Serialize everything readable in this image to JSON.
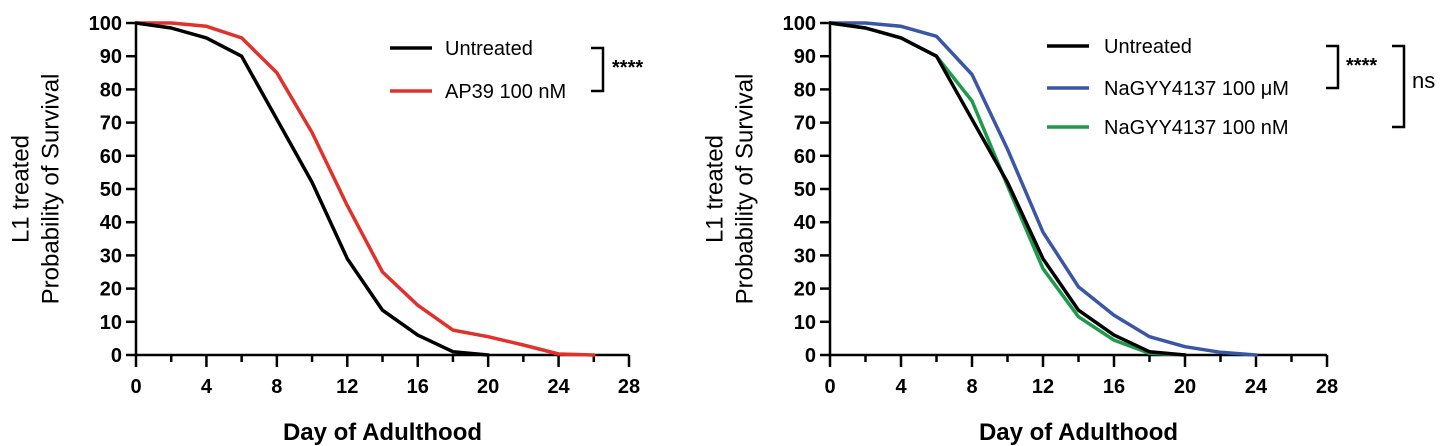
{
  "chart_data": [
    {
      "type": "line",
      "title": "",
      "xlabel": "Day of Adulthood",
      "ylabel": [
        "L1 treated",
        "Probability of Survival"
      ],
      "xlim": [
        0,
        28
      ],
      "ylim": [
        0,
        100
      ],
      "xticks": [
        0,
        4,
        8,
        12,
        16,
        20,
        24,
        28
      ],
      "yticks": [
        0,
        10,
        20,
        30,
        40,
        50,
        60,
        70,
        80,
        90,
        100
      ],
      "legend_placement": "top-right",
      "series": [
        {
          "name": "Untreated",
          "color": "#000000",
          "x": [
            0,
            2,
            4,
            6,
            8,
            10,
            12,
            14,
            16,
            18,
            20
          ],
          "y": [
            100,
            98.5,
            95.5,
            90,
            71,
            52,
            29,
            13.5,
            6,
            1,
            0
          ]
        },
        {
          "name": "AP39 100 nM",
          "color": "#e0312b",
          "x": [
            0,
            2,
            4,
            6,
            8,
            10,
            12,
            14,
            16,
            18,
            20,
            22,
            24,
            26
          ],
          "y": [
            100,
            100,
            99,
            95.5,
            85,
            67,
            45,
            25,
            15,
            7.5,
            5.5,
            3,
            0.3,
            0
          ]
        }
      ],
      "annotations": [
        {
          "text": "****",
          "groups": [
            "Untreated",
            "AP39 100 nM"
          ]
        }
      ]
    },
    {
      "type": "line",
      "title": "",
      "xlabel": "Day of Adulthood",
      "ylabel": [
        "L1 treated",
        "Probability of Survival"
      ],
      "xlim": [
        0,
        28
      ],
      "ylim": [
        0,
        100
      ],
      "xticks": [
        0,
        4,
        8,
        12,
        16,
        20,
        24,
        28
      ],
      "yticks": [
        0,
        10,
        20,
        30,
        40,
        50,
        60,
        70,
        80,
        90,
        100
      ],
      "legend_placement": "top-right",
      "series": [
        {
          "name": "Untreated",
          "color": "#000000",
          "x": [
            0,
            2,
            4,
            6,
            8,
            10,
            12,
            14,
            16,
            18,
            20
          ],
          "y": [
            100,
            98.5,
            95.5,
            90,
            71,
            52,
            29,
            13.5,
            6,
            1,
            0
          ]
        },
        {
          "name": "NaGYY4137 100 μM",
          "color": "#3a56a5",
          "x": [
            0,
            2,
            4,
            6,
            8,
            10,
            12,
            14,
            16,
            18,
            20,
            22,
            24
          ],
          "y": [
            100,
            100,
            99,
            96,
            84.5,
            62,
            37,
            20.5,
            12,
            5.5,
            2.5,
            0.8,
            0
          ]
        },
        {
          "name": "NaGYY4137 100 nM",
          "color": "#1e9a4b",
          "x": [
            0,
            2,
            4,
            6,
            8,
            10,
            12,
            14,
            16,
            18,
            20
          ],
          "y": [
            100,
            98.5,
            95.5,
            90,
            76.5,
            51,
            26,
            11.5,
            4.5,
            0.5,
            0
          ]
        }
      ],
      "annotations": [
        {
          "text": "****",
          "groups": [
            "Untreated",
            "NaGYY4137 100 μM"
          ]
        },
        {
          "text": "ns",
          "groups": [
            "Untreated",
            "NaGYY4137 100 nM"
          ]
        }
      ]
    }
  ]
}
